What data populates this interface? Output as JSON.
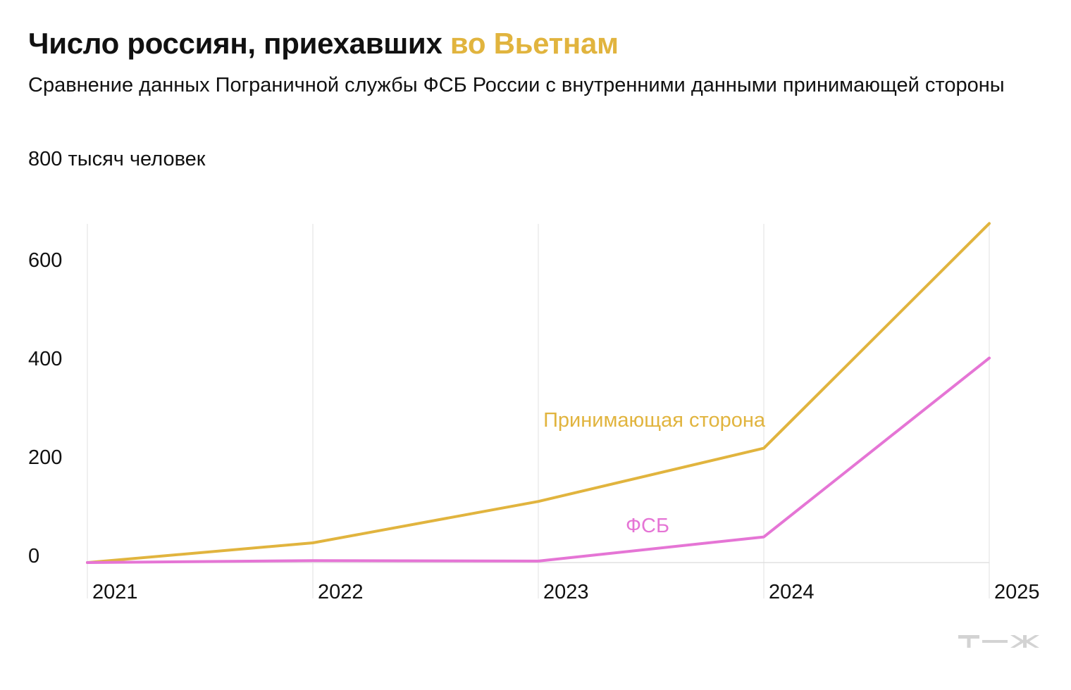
{
  "title": {
    "part1": "Число россиян, приехавших ",
    "part2": "во Вьетнам",
    "accent_color": "#E1B43E"
  },
  "subtitle": "Сравнение данных Пограничной службы ФСБ России с внутренними данными принимающей стороны",
  "logo": "т—ж",
  "chart_data": {
    "type": "line",
    "title": "Число россиян, приехавших во Вьетнам",
    "subtitle": "Сравнение данных Пограничной службы ФСБ России с внутренними данными принимающей стороны",
    "ylabel": "тысяч человек",
    "y_top_label": "800 тысяч человек",
    "x": [
      "2021",
      "2022",
      "2023",
      "2024",
      "2025"
    ],
    "yticks": [
      0,
      200,
      400,
      600
    ],
    "ylim": [
      0,
      800
    ],
    "grid": "vertical at x ticks",
    "legend": "inline labels",
    "series": [
      {
        "name": "Принимающая сторона",
        "color": "#E1B43E",
        "values": [
          0,
          40,
          124,
          232,
          688
        ]
      },
      {
        "name": "ФСБ",
        "color": "#E575D5",
        "values": [
          0,
          4,
          3,
          52,
          415
        ]
      }
    ]
  }
}
